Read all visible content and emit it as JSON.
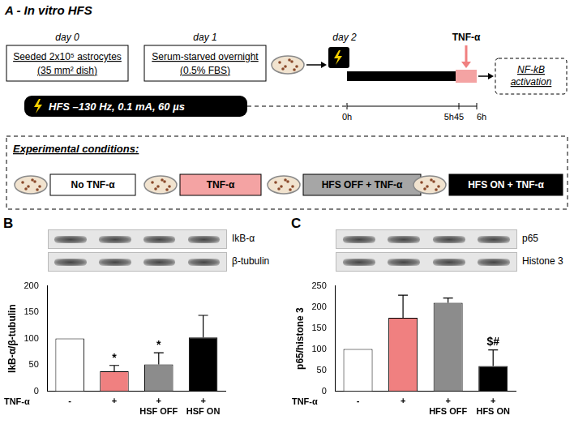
{
  "panel_a": {
    "title": "A - In vitro HFS",
    "steps": [
      {
        "day": "day 0",
        "lines": [
          "Seeded 2x10⁵ astrocytes",
          "(35 mm² dish)"
        ]
      },
      {
        "day": "day 1",
        "lines": [
          "Serum-starved overnight",
          "(0.5% FBS)"
        ]
      }
    ],
    "day2": "day 2",
    "stimulus": "TNF-α",
    "hfs_label": "HFS –130 Hz, 0.1 mA, 60 µs",
    "timeline": [
      "0h",
      "5h45",
      "6h"
    ],
    "readout": "NF-kB activation",
    "conditions_title": "Experimental conditions:",
    "conditions": [
      {
        "label": "No TNF-α",
        "color": "#ffffff"
      },
      {
        "label": "TNF-α",
        "color": "#f4a3a3"
      },
      {
        "label": "HFS OFF + TNF-α",
        "color": "#a6a6a6"
      },
      {
        "label": "HFS ON + TNF-α",
        "color": "#000000"
      }
    ]
  },
  "chart_data": [
    {
      "type": "bar",
      "title": "B",
      "blots": [
        "IkB-α",
        "β-tubulin"
      ],
      "y_label": "IkB-α/β-tubulin",
      "x_label": "TNF-α",
      "categories": [
        "-",
        "+",
        "+",
        "+"
      ],
      "condition_labels": [
        null,
        null,
        "HSF OFF",
        "HSF ON"
      ],
      "values": [
        100,
        38,
        51,
        102
      ],
      "errors": [
        0,
        11,
        22,
        42
      ],
      "significance": [
        null,
        "*",
        "*",
        null
      ],
      "colors": [
        "#ffffff",
        "#f08080",
        "#8c8c8c",
        "#000000"
      ],
      "ylim": [
        0,
        200
      ],
      "yticks": [
        0,
        50,
        100,
        150,
        200
      ],
      "grid": false
    },
    {
      "type": "bar",
      "title": "C",
      "blots": [
        "p65",
        "Histone 3"
      ],
      "y_label": "p65/histone 3",
      "x_label": "TNF-α",
      "categories": [
        "-",
        "+",
        "+",
        "+"
      ],
      "condition_labels": [
        null,
        null,
        "HFS OFF",
        "HFS ON"
      ],
      "values": [
        100,
        174,
        210,
        60
      ],
      "errors": [
        0,
        54,
        11,
        38
      ],
      "significance": [
        null,
        null,
        null,
        "$#"
      ],
      "colors": [
        "#ffffff",
        "#f08080",
        "#8c8c8c",
        "#000000"
      ],
      "ylim": [
        0,
        250
      ],
      "yticks": [
        0,
        50,
        100,
        150,
        200,
        250
      ],
      "grid": false
    }
  ]
}
